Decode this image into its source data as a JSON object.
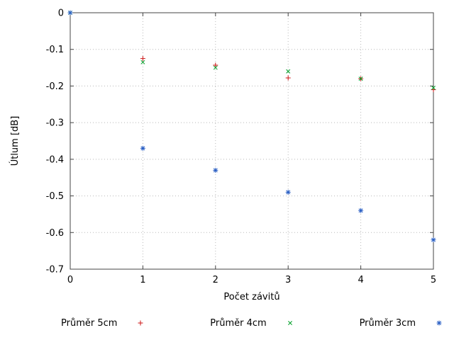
{
  "chart_data": {
    "type": "scatter",
    "title": "",
    "xlabel": "Počet závitů",
    "ylabel": "Útlum [dB]",
    "xlim": [
      0,
      5
    ],
    "ylim": [
      -0.7,
      0
    ],
    "grid": true,
    "legend_position": "bottom",
    "x_ticks": [
      0,
      1,
      2,
      3,
      4,
      5
    ],
    "x_tick_labels": [
      "0",
      "1",
      "2",
      "3",
      "4",
      "5"
    ],
    "y_ticks": [
      0,
      -0.1,
      -0.2,
      -0.3,
      -0.4,
      -0.5,
      -0.6,
      -0.7
    ],
    "y_tick_labels": [
      "0",
      "-0.1",
      "-0.2",
      "-0.3",
      "-0.4",
      "-0.5",
      "-0.6",
      "-0.7"
    ],
    "x": [
      0,
      1,
      2,
      3,
      4,
      5
    ],
    "series": [
      {
        "name": "Průměr 5cm",
        "marker": "plus",
        "color": "#cc1414",
        "values": [
          0,
          -0.125,
          -0.143,
          -0.178,
          -0.18,
          -0.21
        ]
      },
      {
        "name": "Průměr 4cm",
        "marker": "cross",
        "color": "#00a028",
        "values": [
          0,
          -0.135,
          -0.15,
          -0.16,
          -0.18,
          -0.205
        ]
      },
      {
        "name": "Průměr 3cm",
        "marker": "asterisk",
        "color": "#2a5fc4",
        "values": [
          0,
          -0.37,
          -0.43,
          -0.49,
          -0.54,
          -0.62
        ]
      }
    ]
  }
}
